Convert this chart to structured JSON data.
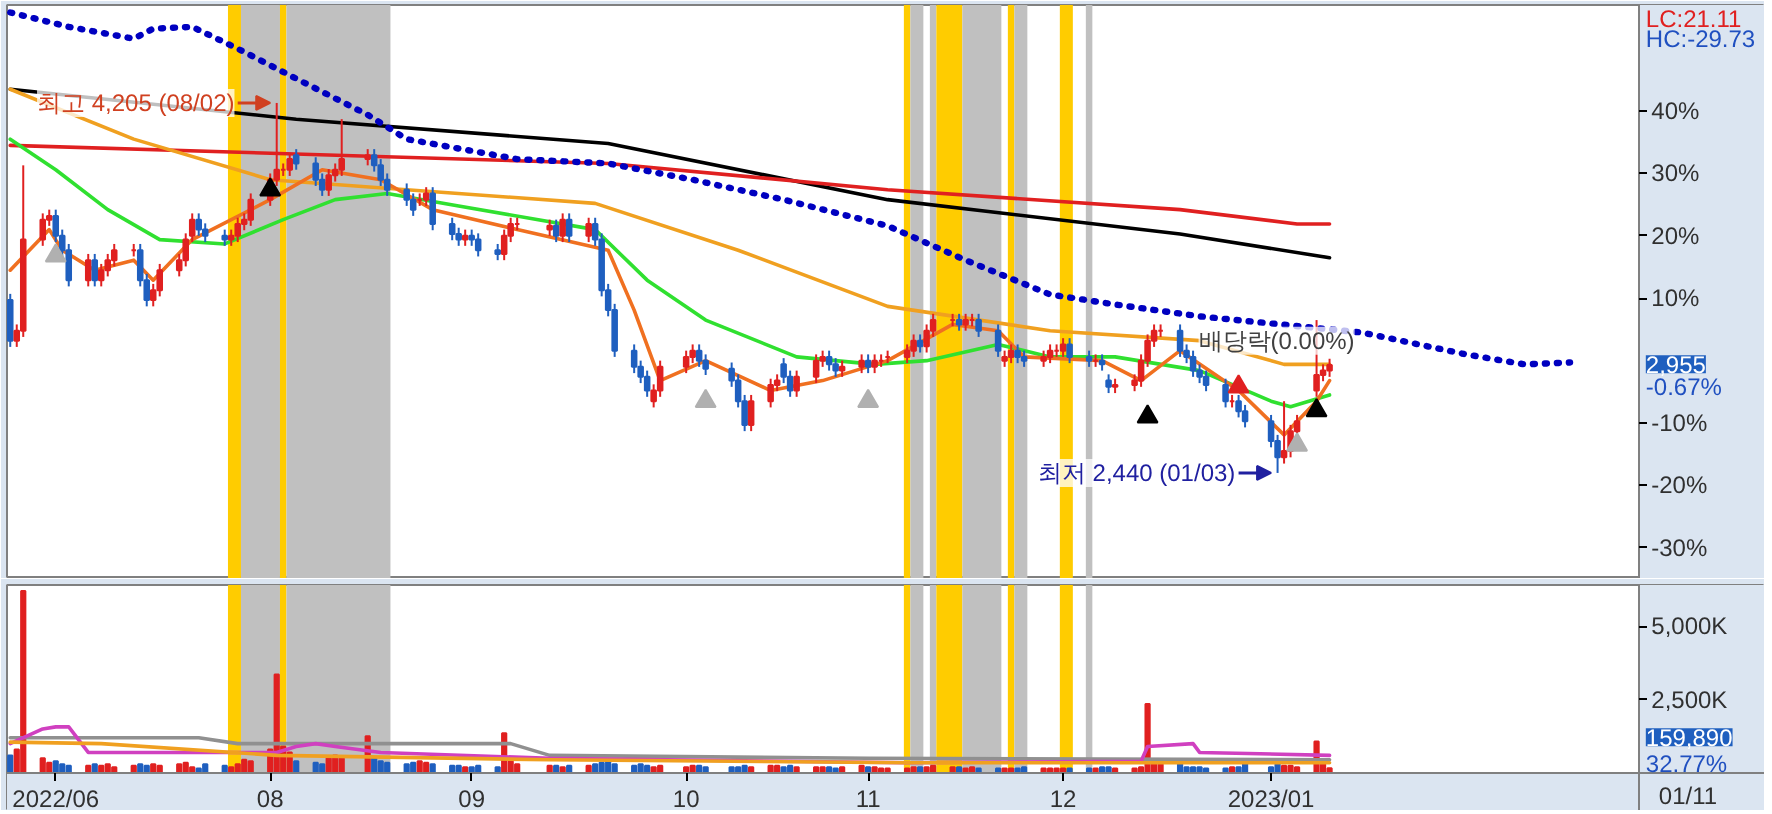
{
  "chart_data": [
    {
      "type": "candlestick",
      "xlim": [
        "2022-06-21T12:00",
        "2023-03-19"
      ],
      "ylim": [
        -35,
        57
      ],
      "yticks": [
        {
          "value": -30,
          "label": "-30%"
        },
        {
          "value": -20,
          "label": "-20%"
        },
        {
          "value": -10,
          "label": "-10%"
        },
        {
          "value": 10,
          "label": "10%"
        },
        {
          "value": 20,
          "label": "20%"
        },
        {
          "value": 30,
          "label": "30%"
        },
        {
          "value": 40,
          "label": "40%"
        }
      ],
      "tick_labels": "y",
      "x": [
        "2022-06-22",
        "2022-06-23",
        "2022-06-24",
        "2022-06-27",
        "2022-06-28",
        "2022-06-29",
        "2022-06-30",
        "2022-07-01",
        "2022-07-04",
        "2022-07-05",
        "2022-07-06",
        "2022-07-07",
        "2022-07-08",
        "2022-07-11",
        "2022-07-12",
        "2022-07-13",
        "2022-07-14",
        "2022-07-15",
        "2022-07-18",
        "2022-07-19",
        "2022-07-20",
        "2022-07-21",
        "2022-07-22",
        "2022-07-25",
        "2022-07-26",
        "2022-07-27",
        "2022-07-28",
        "2022-07-29",
        "2022-08-01",
        "2022-08-02",
        "2022-08-03",
        "2022-08-04",
        "2022-08-05",
        "2022-08-08",
        "2022-08-09",
        "2022-08-10",
        "2022-08-11",
        "2022-08-12",
        "2022-08-16",
        "2022-08-17",
        "2022-08-18",
        "2022-08-19",
        "2022-08-22",
        "2022-08-23",
        "2022-08-24",
        "2022-08-25",
        "2022-08-26",
        "2022-08-29",
        "2022-08-30",
        "2022-08-31",
        "2022-09-01",
        "2022-09-02",
        "2022-09-05",
        "2022-09-06",
        "2022-09-07",
        "2022-09-08",
        "2022-09-13",
        "2022-09-14",
        "2022-09-15",
        "2022-09-16",
        "2022-09-19",
        "2022-09-20",
        "2022-09-21",
        "2022-09-22",
        "2022-09-23",
        "2022-09-26",
        "2022-09-27",
        "2022-09-28",
        "2022-09-29",
        "2022-09-30",
        "2022-10-04",
        "2022-10-05",
        "2022-10-06",
        "2022-10-07",
        "2022-10-11",
        "2022-10-12",
        "2022-10-13",
        "2022-10-14",
        "2022-10-17",
        "2022-10-18",
        "2022-10-19",
        "2022-10-20",
        "2022-10-21",
        "2022-10-24",
        "2022-10-25",
        "2022-10-26",
        "2022-10-27",
        "2022-10-28",
        "2022-10-31",
        "2022-11-01",
        "2022-11-02",
        "2022-11-03",
        "2022-11-04",
        "2022-11-07",
        "2022-11-08",
        "2022-11-09",
        "2022-11-10",
        "2022-11-11",
        "2022-11-14",
        "2022-11-15",
        "2022-11-16",
        "2022-11-17",
        "2022-11-18",
        "2022-11-21",
        "2022-11-22",
        "2022-11-23",
        "2022-11-24",
        "2022-11-25",
        "2022-11-28",
        "2022-11-29",
        "2022-11-30",
        "2022-12-01",
        "2022-12-02",
        "2022-12-05",
        "2022-12-06",
        "2022-12-07",
        "2022-12-08",
        "2022-12-09",
        "2022-12-12",
        "2022-12-13",
        "2022-12-14",
        "2022-12-15",
        "2022-12-16",
        "2022-12-19",
        "2022-12-20",
        "2022-12-21",
        "2022-12-22",
        "2022-12-23",
        "2022-12-26",
        "2022-12-27",
        "2022-12-28",
        "2022-12-29",
        "2023-01-02",
        "2023-01-03",
        "2023-01-04",
        "2023-01-05",
        "2023-01-06",
        "2023-01-09",
        "2023-01-10",
        "2023-01-11"
      ],
      "ohlc": [
        [
          9.7,
          10.7,
          2.2,
          3.2
        ],
        [
          3.2,
          5.8,
          2.2,
          4.8
        ],
        [
          4.8,
          31.3,
          3.8,
          19.4
        ],
        [
          19.4,
          23.6,
          18.4,
          22.6
        ],
        [
          22.6,
          24.2,
          21.6,
          23.2
        ],
        [
          23.2,
          24.2,
          19.0,
          20.0
        ],
        [
          20.0,
          21.0,
          16.7,
          17.7
        ],
        [
          17.7,
          18.7,
          11.9,
          12.9
        ],
        [
          12.9,
          17.1,
          11.9,
          16.1
        ],
        [
          16.1,
          17.1,
          11.9,
          12.9
        ],
        [
          12.9,
          15.5,
          11.9,
          14.5
        ],
        [
          14.5,
          17.1,
          13.5,
          16.1
        ],
        [
          16.1,
          18.7,
          15.1,
          17.7
        ],
        [
          17.7,
          18.7,
          16.7,
          17.7
        ],
        [
          17.7,
          18.7,
          11.9,
          12.9
        ],
        [
          12.9,
          13.9,
          8.7,
          9.7
        ],
        [
          9.7,
          12.3,
          8.7,
          11.3
        ],
        [
          11.3,
          15.5,
          10.3,
          14.5
        ],
        [
          14.5,
          17.1,
          13.5,
          16.1
        ],
        [
          16.1,
          20.4,
          15.1,
          19.4
        ],
        [
          20.0,
          23.6,
          19.0,
          22.6
        ],
        [
          22.6,
          23.6,
          20.0,
          21.0
        ],
        [
          21.0,
          22.0,
          19.0,
          20.0
        ],
        [
          20.0,
          21.0,
          18.4,
          19.4
        ],
        [
          19.4,
          21.0,
          18.4,
          20.0
        ],
        [
          20.0,
          22.9,
          19.0,
          21.9
        ],
        [
          21.9,
          23.6,
          20.9,
          22.6
        ],
        [
          22.6,
          26.8,
          21.6,
          25.8
        ],
        [
          25.8,
          30.0,
          24.8,
          29.0
        ],
        [
          29.0,
          41.3,
          28.0,
          30.6
        ],
        [
          30.6,
          31.6,
          29.6,
          30.6
        ],
        [
          30.6,
          33.3,
          29.6,
          32.3
        ],
        [
          32.9,
          33.9,
          30.6,
          31.6
        ],
        [
          31.6,
          32.6,
          28.0,
          29.0
        ],
        [
          29.0,
          30.0,
          26.4,
          27.4
        ],
        [
          27.4,
          30.7,
          26.4,
          29.7
        ],
        [
          29.7,
          31.6,
          28.7,
          30.6
        ],
        [
          30.6,
          38.7,
          29.6,
          32.3
        ],
        [
          32.3,
          33.9,
          31.3,
          32.9
        ],
        [
          32.9,
          33.9,
          30.3,
          31.3
        ],
        [
          31.3,
          32.3,
          28.0,
          29.0
        ],
        [
          29.0,
          30.0,
          26.4,
          27.4
        ],
        [
          27.4,
          28.4,
          24.8,
          25.8
        ],
        [
          25.8,
          26.8,
          23.2,
          24.2
        ],
        [
          25.8,
          26.8,
          24.8,
          25.8
        ],
        [
          25.8,
          27.8,
          24.8,
          26.8
        ],
        [
          26.8,
          27.8,
          20.9,
          21.9
        ],
        [
          21.9,
          22.9,
          19.3,
          20.3
        ],
        [
          20.3,
          21.3,
          18.4,
          19.4
        ],
        [
          19.4,
          21.0,
          18.4,
          20.0
        ],
        [
          20.0,
          21.0,
          18.4,
          19.4
        ],
        [
          19.4,
          20.4,
          16.7,
          17.7
        ],
        [
          17.7,
          18.7,
          16.1,
          17.1
        ],
        [
          17.1,
          21.0,
          16.1,
          20.0
        ],
        [
          20.0,
          22.9,
          19.0,
          21.9
        ],
        [
          21.9,
          22.9,
          20.9,
          21.9
        ],
        [
          21.0,
          22.6,
          20.0,
          21.6
        ],
        [
          21.6,
          22.6,
          19.0,
          20.0
        ],
        [
          20.0,
          23.6,
          19.0,
          22.6
        ],
        [
          22.6,
          23.6,
          19.0,
          20.0
        ],
        [
          20.0,
          22.9,
          19.0,
          21.9
        ],
        [
          21.9,
          22.9,
          18.4,
          19.4
        ],
        [
          19.4,
          20.4,
          10.3,
          11.3
        ],
        [
          11.3,
          12.3,
          7.1,
          8.1
        ],
        [
          8.1,
          9.1,
          0.6,
          1.6
        ],
        [
          1.6,
          2.6,
          -2.0,
          -1.0
        ],
        [
          -1.0,
          0.0,
          -3.6,
          -2.6
        ],
        [
          -2.6,
          -1.6,
          -5.8,
          -4.8
        ],
        [
          -6.5,
          -3.8,
          -7.5,
          -4.8
        ],
        [
          -4.8,
          0.0,
          -5.8,
          -1.0
        ],
        [
          -1.0,
          1.6,
          -2.0,
          0.6
        ],
        [
          0.6,
          2.6,
          -0.4,
          1.6
        ],
        [
          1.6,
          2.6,
          -1.0,
          0.0
        ],
        [
          0.0,
          1.0,
          -2.3,
          -1.3
        ],
        [
          -1.3,
          -0.3,
          -4.2,
          -3.2
        ],
        [
          -3.2,
          -2.2,
          -7.5,
          -6.5
        ],
        [
          -6.5,
          -5.5,
          -11.3,
          -10.3
        ],
        [
          -10.3,
          -5.5,
          -11.3,
          -6.5
        ],
        [
          -6.5,
          -2.9,
          -7.5,
          -3.9
        ],
        [
          -3.9,
          -2.2,
          -4.9,
          -3.2
        ],
        [
          -0.6,
          0.4,
          -3.6,
          -2.6
        ],
        [
          -2.6,
          -1.6,
          -5.8,
          -4.8
        ],
        [
          -4.8,
          -1.6,
          -5.8,
          -2.6
        ],
        [
          -2.6,
          1.0,
          -3.6,
          0.0
        ],
        [
          0.0,
          1.6,
          -1.0,
          0.6
        ],
        [
          0.6,
          1.6,
          -1.6,
          -0.6
        ],
        [
          -0.6,
          0.4,
          -2.6,
          -1.6
        ],
        [
          -1.6,
          0.0,
          -2.6,
          -1.0
        ],
        [
          -1.0,
          1.0,
          -2.0,
          0.0
        ],
        [
          0.0,
          1.0,
          -2.0,
          -1.0
        ],
        [
          -1.0,
          1.0,
          -2.0,
          0.0
        ],
        [
          0.0,
          1.0,
          -1.0,
          0.0
        ],
        [
          0.6,
          1.6,
          -0.4,
          0.6
        ],
        [
          0.6,
          2.6,
          -0.4,
          1.6
        ],
        [
          1.6,
          4.2,
          0.6,
          3.2
        ],
        [
          3.2,
          4.2,
          1.3,
          2.3
        ],
        [
          2.3,
          5.8,
          1.3,
          4.8
        ],
        [
          4.8,
          7.5,
          3.8,
          6.5
        ],
        [
          6.5,
          7.5,
          5.5,
          6.5
        ],
        [
          6.5,
          7.5,
          4.8,
          5.8
        ],
        [
          5.8,
          7.5,
          4.8,
          6.5
        ],
        [
          6.5,
          7.5,
          5.5,
          6.5
        ],
        [
          6.5,
          7.5,
          3.8,
          4.8
        ],
        [
          4.8,
          5.8,
          0.6,
          1.6
        ],
        [
          0.0,
          1.6,
          -1.0,
          0.6
        ],
        [
          0.6,
          2.6,
          -0.4,
          1.6
        ],
        [
          1.6,
          2.6,
          -0.4,
          0.6
        ],
        [
          0.6,
          1.6,
          -1.0,
          0.0
        ],
        [
          0.0,
          1.6,
          -1.0,
          0.6
        ],
        [
          0.6,
          2.6,
          -0.4,
          1.6
        ],
        [
          1.6,
          2.6,
          0.6,
          1.6
        ],
        [
          1.6,
          3.6,
          0.6,
          2.6
        ],
        [
          2.6,
          3.6,
          -0.4,
          0.6
        ],
        [
          0.6,
          1.6,
          -1.0,
          0.0
        ],
        [
          0.0,
          1.0,
          -1.0,
          0.0
        ],
        [
          0.0,
          1.0,
          -1.6,
          -0.6
        ],
        [
          -3.2,
          -2.2,
          -5.2,
          -4.2
        ],
        [
          -4.2,
          -2.9,
          -5.2,
          -3.9
        ],
        [
          -3.9,
          -2.2,
          -4.9,
          -3.2
        ],
        [
          -3.2,
          1.0,
          -4.2,
          0.0
        ],
        [
          0.0,
          4.2,
          -1.0,
          3.2
        ],
        [
          3.2,
          5.8,
          2.2,
          4.8
        ],
        [
          4.8,
          5.8,
          3.8,
          4.8
        ],
        [
          4.8,
          5.8,
          0.6,
          1.6
        ],
        [
          1.6,
          2.6,
          -0.4,
          0.6
        ],
        [
          0.6,
          1.6,
          -2.6,
          -1.6
        ],
        [
          -1.6,
          -0.6,
          -3.6,
          -2.6
        ],
        [
          -2.6,
          -1.6,
          -4.9,
          -3.9
        ],
        [
          -3.9,
          -2.9,
          -7.5,
          -6.5
        ],
        [
          -6.5,
          -5.5,
          -7.5,
          -6.5
        ],
        [
          -6.5,
          -5.5,
          -9.1,
          -8.1
        ],
        [
          -8.1,
          -7.1,
          -10.7,
          -9.7
        ],
        [
          -9.7,
          -8.7,
          -13.9,
          -12.9
        ],
        [
          -12.9,
          -11.9,
          -18.0,
          -15.5
        ],
        [
          -15.5,
          -6.5,
          -16.5,
          -14.5
        ],
        [
          -14.5,
          -10.3,
          -15.5,
          -11.3
        ],
        [
          -11.3,
          -8.7,
          -12.3,
          -9.7
        ],
        [
          -4.8,
          6.5,
          -5.8,
          -2.3
        ],
        [
          -2.3,
          -0.6,
          -3.3,
          -1.6
        ],
        [
          -1.6,
          0.3,
          -2.6,
          -0.7
        ]
      ],
      "colors": [
        "#1f5fbf",
        "#e02020",
        "#e02020",
        "#e02020",
        "#e02020",
        "#1f5fbf",
        "#1f5fbf",
        "#1f5fbf",
        "#e02020",
        "#1f5fbf",
        "#e02020",
        "#e02020",
        "#e02020",
        "#e02020",
        "#1f5fbf",
        "#1f5fbf",
        "#e02020",
        "#e02020",
        "#e02020",
        "#e02020",
        "#e02020",
        "#1f5fbf",
        "#1f5fbf",
        "#1f5fbf",
        "#e02020",
        "#e02020",
        "#e02020",
        "#e02020",
        "#e02020",
        "#e02020",
        "#e02020",
        "#e02020",
        "#1f5fbf",
        "#1f5fbf",
        "#1f5fbf",
        "#e02020",
        "#e02020",
        "#e02020",
        "#e02020",
        "#1f5fbf",
        "#1f5fbf",
        "#1f5fbf",
        "#1f5fbf",
        "#1f5fbf",
        "#e02020",
        "#e02020",
        "#1f5fbf",
        "#1f5fbf",
        "#1f5fbf",
        "#e02020",
        "#1f5fbf",
        "#1f5fbf",
        "#1f5fbf",
        "#e02020",
        "#e02020",
        "#e02020",
        "#e02020",
        "#1f5fbf",
        "#e02020",
        "#1f5fbf",
        "#e02020",
        "#1f5fbf",
        "#1f5fbf",
        "#1f5fbf",
        "#1f5fbf",
        "#1f5fbf",
        "#1f5fbf",
        "#1f5fbf",
        "#e02020",
        "#e02020",
        "#e02020",
        "#e02020",
        "#1f5fbf",
        "#1f5fbf",
        "#1f5fbf",
        "#1f5fbf",
        "#1f5fbf",
        "#e02020",
        "#e02020",
        "#e02020",
        "#1f5fbf",
        "#1f5fbf",
        "#e02020",
        "#e02020",
        "#e02020",
        "#1f5fbf",
        "#1f5fbf",
        "#e02020",
        "#e02020",
        "#1f5fbf",
        "#e02020",
        "#e02020",
        "#e02020",
        "#e02020",
        "#e02020",
        "#1f5fbf",
        "#e02020",
        "#e02020",
        "#e02020",
        "#1f5fbf",
        "#e02020",
        "#e02020",
        "#1f5fbf",
        "#1f5fbf",
        "#e02020",
        "#e02020",
        "#1f5fbf",
        "#1f5fbf",
        "#e02020",
        "#e02020",
        "#e02020",
        "#e02020",
        "#1f5fbf",
        "#1f5fbf",
        "#e02020",
        "#1f5fbf",
        "#1f5fbf",
        "#e02020",
        "#e02020",
        "#e02020",
        "#e02020",
        "#e02020",
        "#e02020",
        "#1f5fbf",
        "#1f5fbf",
        "#1f5fbf",
        "#1f5fbf",
        "#1f5fbf",
        "#1f5fbf",
        "#e02020",
        "#1f5fbf",
        "#1f5fbf",
        "#1f5fbf",
        "#1f5fbf",
        "#e02020",
        "#e02020",
        "#e02020",
        "#e02020",
        "#e02020",
        "#e02020"
      ],
      "series": [
        {
          "type": "line",
          "color": "#000000",
          "x": [
            "2022-06-22",
            "2022-08-05",
            "2022-09-22",
            "2022-11-04",
            "2022-12-19",
            "2023-01-11"
          ],
          "values": [
            43.5,
            38.7,
            34.8,
            25.8,
            20.3,
            16.5
          ]
        },
        {
          "type": "line",
          "color": "#e02020",
          "x": [
            "2022-06-22",
            "2022-09-22",
            "2022-11-04",
            "2022-12-19",
            "2023-01-06",
            "2023-01-11"
          ],
          "values": [
            34.5,
            31.6,
            27.4,
            24.2,
            21.9,
            21.9
          ]
        },
        {
          "type": "line",
          "color": "#f0a020",
          "x": [
            "2022-06-22",
            "2022-07-11",
            "2022-08-01",
            "2022-08-22",
            "2022-09-20",
            "2022-10-12",
            "2022-11-04",
            "2022-11-29",
            "2022-12-22",
            "2023-01-04",
            "2023-01-11"
          ],
          "values": [
            43.5,
            35.5,
            29,
            27.4,
            25.2,
            17.7,
            8.7,
            4.8,
            3.2,
            -0.6,
            -0.6
          ]
        },
        {
          "type": "line",
          "color": "#30e030",
          "x": [
            "2022-06-22",
            "2022-06-29",
            "2022-07-07",
            "2022-07-15",
            "2022-07-25",
            "2022-08-03",
            "2022-08-11",
            "2022-08-19",
            "2022-08-30",
            "2022-09-20",
            "2022-09-28",
            "2022-10-07",
            "2022-10-21",
            "2022-11-02",
            "2022-11-10",
            "2022-11-21",
            "2022-11-29",
            "2022-12-09",
            "2022-12-22",
            "2023-01-02",
            "2023-01-05",
            "2023-01-11"
          ],
          "values": [
            35.5,
            30.6,
            24.2,
            19.4,
            18.7,
            22.6,
            25.8,
            26.8,
            24.8,
            21,
            12.9,
            6.5,
            0.6,
            -0.6,
            0,
            2.6,
            0.6,
            0.6,
            -1.6,
            -6.5,
            -7.4,
            -5.5
          ]
        },
        {
          "type": "line",
          "color": "#f07020",
          "x": [
            "2022-06-22",
            "2022-06-28",
            "2022-06-30",
            "2022-07-05",
            "2022-07-11",
            "2022-07-14",
            "2022-07-20",
            "2022-08-01",
            "2022-08-09",
            "2022-08-18",
            "2022-08-26",
            "2022-09-08",
            "2022-09-22",
            "2022-09-26",
            "2022-09-30",
            "2022-10-07",
            "2022-10-17",
            "2022-10-25",
            "2022-11-04",
            "2022-11-14",
            "2022-11-21",
            "2022-11-25",
            "2022-12-07",
            "2022-12-13",
            "2022-12-19",
            "2022-12-28",
            "2023-01-04",
            "2023-01-09",
            "2023-01-11"
          ],
          "values": [
            14.5,
            21,
            17.7,
            14.5,
            16.1,
            12.9,
            19.4,
            25.8,
            30.6,
            29,
            24.2,
            21,
            17.7,
            8.1,
            -3.2,
            0,
            -4.8,
            -3.2,
            0,
            5.8,
            4.8,
            0.6,
            0,
            -3.2,
            1.6,
            -4.8,
            -11.9,
            -6.5,
            -3.2
          ]
        },
        {
          "type": "line",
          "color": "#0000c0",
          "line_style": "dotted",
          "x": [
            "2022-06-22",
            "2022-07-01",
            "2022-07-11",
            "2022-07-14",
            "2022-07-20",
            "2022-07-27",
            "2022-08-05",
            "2022-08-16",
            "2022-08-22",
            "2022-09-08",
            "2022-09-22",
            "2022-10-05",
            "2022-10-19",
            "2022-11-04",
            "2022-11-16",
            "2022-11-29",
            "2022-12-09",
            "2022-12-22",
            "2023-01-16",
            "2023-02-01",
            "2023-02-10",
            "2023-02-17"
          ],
          "values": [
            55.8,
            53.5,
            51.6,
            53.2,
            53.5,
            50,
            45.2,
            39.4,
            35.5,
            32.3,
            31.6,
            29,
            25.8,
            21.6,
            16.1,
            10.6,
            9,
            7.1,
            4.5,
            1,
            -0.6,
            -0.3
          ]
        },
        {
          "type": "scatter",
          "marker": "triangle",
          "color": "#000000",
          "x": [
            "2022-08-01",
            "2022-12-14",
            "2023-01-09"
          ],
          "values": [
            27.4,
            -9.0,
            -8.0
          ]
        },
        {
          "type": "scatter",
          "marker": "triangle",
          "color": "#b0b0b0",
          "x": [
            "2022-06-29",
            "2022-10-07",
            "2022-11-01",
            "2023-01-06"
          ],
          "values": [
            16.8,
            -6.5,
            -6.5,
            -13.5
          ]
        },
        {
          "type": "scatter",
          "marker": "triangle",
          "color": "#e02020",
          "x": [
            "2022-12-28"
          ],
          "values": [
            -4.2
          ]
        }
      ],
      "bands": [
        {
          "axis": "x",
          "from": "2022-07-25T12:00",
          "to": "2022-07-27T12:00",
          "color": "#ffcc00"
        },
        {
          "axis": "x",
          "from": "2022-07-27T12:00",
          "to": "2022-08-02T12:00",
          "color": "#c0c0c0"
        },
        {
          "axis": "x",
          "from": "2022-08-02T12:00",
          "to": "2022-08-03T12:00",
          "color": "#ffcc00"
        },
        {
          "axis": "x",
          "from": "2022-08-03T12:00",
          "to": "2022-08-19T12:00",
          "color": "#c0c0c0"
        },
        {
          "axis": "x",
          "from": "2022-11-06T12:00",
          "to": "2022-11-07T12:00",
          "color": "#ffcc00"
        },
        {
          "axis": "x",
          "from": "2022-11-07T12:00",
          "to": "2022-11-09T12:00",
          "color": "#c0c0c0"
        },
        {
          "axis": "x",
          "from": "2022-11-10T12:00",
          "to": "2022-11-11T12:00",
          "color": "#c0c0c0"
        },
        {
          "axis": "x",
          "from": "2022-11-11T12:00",
          "to": "2022-11-15T12:00",
          "color": "#ffcc00"
        },
        {
          "axis": "x",
          "from": "2022-11-15T12:00",
          "to": "2022-11-21T12:00",
          "color": "#c0c0c0"
        },
        {
          "axis": "x",
          "from": "2022-11-22T12:00",
          "to": "2022-11-23T12:00",
          "color": "#ffcc00"
        },
        {
          "axis": "x",
          "from": "2022-11-23T12:00",
          "to": "2022-11-25T12:00",
          "color": "#c0c0c0"
        },
        {
          "axis": "x",
          "from": "2022-11-30T12:00",
          "to": "2022-12-02T12:00",
          "color": "#ffcc00"
        },
        {
          "axis": "x",
          "from": "2022-12-04T12:00",
          "to": "2022-12-05T12:00",
          "color": "#c0c0c0"
        }
      ],
      "annotations": [
        {
          "text": "최고 4,205 (08/02)",
          "x": "2022-08-02",
          "y": 41.3
        },
        {
          "text": "최저 2,440 (01/03)",
          "x": "2023-01-03",
          "y": -18.0
        },
        "LC:21.11",
        "HC:-29.73",
        "2,955",
        "-0.67%",
        "배당락(0.00%)"
      ]
    },
    {
      "type": "bar",
      "xlim": [
        "2022-06-21T12:00",
        "2023-03-19"
      ],
      "ylim": [
        0,
        6400
      ],
      "xticks": [
        {
          "value": "2022-06-29",
          "label": "2022/06"
        },
        {
          "value": "2022-08-01",
          "label": "08"
        },
        {
          "value": "2022-09-01",
          "label": "09"
        },
        {
          "value": "2022-10-04",
          "label": "10"
        },
        {
          "value": "2022-11-01",
          "label": "11"
        },
        {
          "value": "2022-12-01",
          "label": "12"
        },
        {
          "value": "2023-01-02",
          "label": "2023/01"
        }
      ],
      "yticks": [
        {
          "value": 2500,
          "label": "2,500K"
        },
        {
          "value": 5000,
          "label": "5,000K"
        }
      ],
      "x": [
        "2022-06-22",
        "2022-06-23",
        "2022-06-24",
        "2022-06-27",
        "2022-06-28",
        "2022-06-29",
        "2022-06-30",
        "2022-07-01",
        "2022-07-04",
        "2022-07-05",
        "2022-07-06",
        "2022-07-07",
        "2022-07-08",
        "2022-07-11",
        "2022-07-12",
        "2022-07-13",
        "2022-07-14",
        "2022-07-15",
        "2022-07-18",
        "2022-07-19",
        "2022-07-20",
        "2022-07-21",
        "2022-07-22",
        "2022-07-25",
        "2022-07-26",
        "2022-07-27",
        "2022-07-28",
        "2022-07-29",
        "2022-08-01",
        "2022-08-02",
        "2022-08-03",
        "2022-08-04",
        "2022-08-05",
        "2022-08-08",
        "2022-08-09",
        "2022-08-10",
        "2022-08-11",
        "2022-08-12",
        "2022-08-16",
        "2022-08-17",
        "2022-08-18",
        "2022-08-19",
        "2022-08-22",
        "2022-08-23",
        "2022-08-24",
        "2022-08-25",
        "2022-08-26",
        "2022-08-29",
        "2022-08-30",
        "2022-08-31",
        "2022-09-01",
        "2022-09-02",
        "2022-09-05",
        "2022-09-06",
        "2022-09-07",
        "2022-09-08",
        "2022-09-13",
        "2022-09-14",
        "2022-09-15",
        "2022-09-16",
        "2022-09-19",
        "2022-09-20",
        "2022-09-21",
        "2022-09-22",
        "2022-09-23",
        "2022-09-26",
        "2022-09-27",
        "2022-09-28",
        "2022-09-29",
        "2022-09-30",
        "2022-10-04",
        "2022-10-05",
        "2022-10-06",
        "2022-10-07",
        "2022-10-11",
        "2022-10-12",
        "2022-10-13",
        "2022-10-14",
        "2022-10-17",
        "2022-10-18",
        "2022-10-19",
        "2022-10-20",
        "2022-10-21",
        "2022-10-24",
        "2022-10-25",
        "2022-10-26",
        "2022-10-27",
        "2022-10-28",
        "2022-10-31",
        "2022-11-01",
        "2022-11-02",
        "2022-11-03",
        "2022-11-04",
        "2022-11-07",
        "2022-11-08",
        "2022-11-09",
        "2022-11-10",
        "2022-11-11",
        "2022-11-14",
        "2022-11-15",
        "2022-11-16",
        "2022-11-17",
        "2022-11-18",
        "2022-11-21",
        "2022-11-22",
        "2022-11-23",
        "2022-11-24",
        "2022-11-25",
        "2022-11-28",
        "2022-11-29",
        "2022-11-30",
        "2022-12-01",
        "2022-12-02",
        "2022-12-05",
        "2022-12-06",
        "2022-12-07",
        "2022-12-08",
        "2022-12-09",
        "2022-12-12",
        "2022-12-13",
        "2022-12-14",
        "2022-12-15",
        "2022-12-16",
        "2022-12-19",
        "2022-12-20",
        "2022-12-21",
        "2022-12-22",
        "2022-12-23",
        "2022-12-26",
        "2022-12-27",
        "2022-12-28",
        "2022-12-29",
        "2023-01-02",
        "2023-01-03",
        "2023-01-04",
        "2023-01-05",
        "2023-01-06",
        "2023-01-09",
        "2023-01-10",
        "2023-01-11"
      ],
      "values": [
        600,
        800,
        6200,
        500,
        350,
        400,
        300,
        250,
        250,
        300,
        250,
        300,
        200,
        250,
        300,
        250,
        300,
        250,
        300,
        350,
        200,
        150,
        300,
        250,
        200,
        300,
        450,
        400,
        800,
        3350,
        900,
        700,
        400,
        350,
        300,
        500,
        600,
        500,
        1250,
        500,
        400,
        350,
        300,
        350,
        400,
        350,
        300,
        250,
        250,
        200,
        200,
        250,
        200,
        1350,
        400,
        300,
        250,
        250,
        200,
        250,
        250,
        300,
        350,
        400,
        300,
        250,
        300,
        250,
        200,
        250,
        200,
        250,
        250,
        200,
        200,
        200,
        250,
        200,
        250,
        250,
        200,
        250,
        200,
        200,
        200,
        200,
        150,
        200,
        250,
        200,
        200,
        150,
        150,
        150,
        200,
        200,
        200,
        250,
        200,
        200,
        150,
        200,
        150,
        150,
        150,
        150,
        150,
        200,
        150,
        150,
        150,
        150,
        150,
        150,
        150,
        200,
        200,
        150,
        150,
        200,
        2350,
        400,
        300,
        350,
        200,
        200,
        200,
        150,
        150,
        200,
        200,
        400,
        200,
        300,
        250,
        250,
        200,
        1070,
        300,
        160
      ],
      "colors": [
        "#1f5fbf",
        "#e02020",
        "#e02020",
        "#e02020",
        "#e02020",
        "#1f5fbf",
        "#1f5fbf",
        "#1f5fbf",
        "#e02020",
        "#1f5fbf",
        "#e02020",
        "#e02020",
        "#e02020",
        "#e02020",
        "#1f5fbf",
        "#1f5fbf",
        "#e02020",
        "#e02020",
        "#e02020",
        "#e02020",
        "#e02020",
        "#1f5fbf",
        "#1f5fbf",
        "#1f5fbf",
        "#e02020",
        "#e02020",
        "#e02020",
        "#e02020",
        "#e02020",
        "#e02020",
        "#e02020",
        "#e02020",
        "#1f5fbf",
        "#1f5fbf",
        "#1f5fbf",
        "#e02020",
        "#e02020",
        "#e02020",
        "#e02020",
        "#1f5fbf",
        "#1f5fbf",
        "#1f5fbf",
        "#1f5fbf",
        "#1f5fbf",
        "#e02020",
        "#e02020",
        "#1f5fbf",
        "#1f5fbf",
        "#1f5fbf",
        "#e02020",
        "#1f5fbf",
        "#1f5fbf",
        "#1f5fbf",
        "#e02020",
        "#e02020",
        "#e02020",
        "#e02020",
        "#1f5fbf",
        "#e02020",
        "#1f5fbf",
        "#e02020",
        "#1f5fbf",
        "#1f5fbf",
        "#1f5fbf",
        "#1f5fbf",
        "#1f5fbf",
        "#1f5fbf",
        "#1f5fbf",
        "#e02020",
        "#e02020",
        "#e02020",
        "#e02020",
        "#1f5fbf",
        "#1f5fbf",
        "#1f5fbf",
        "#1f5fbf",
        "#1f5fbf",
        "#e02020",
        "#e02020",
        "#e02020",
        "#1f5fbf",
        "#1f5fbf",
        "#e02020",
        "#e02020",
        "#e02020",
        "#1f5fbf",
        "#1f5fbf",
        "#e02020",
        "#e02020",
        "#1f5fbf",
        "#e02020",
        "#e02020",
        "#e02020",
        "#e02020",
        "#e02020",
        "#1f5fbf",
        "#e02020",
        "#e02020",
        "#e02020",
        "#1f5fbf",
        "#e02020",
        "#e02020",
        "#1f5fbf",
        "#1f5fbf",
        "#e02020",
        "#e02020",
        "#1f5fbf",
        "#1f5fbf",
        "#e02020",
        "#e02020",
        "#e02020",
        "#e02020",
        "#1f5fbf",
        "#1f5fbf",
        "#e02020",
        "#1f5fbf",
        "#1f5fbf",
        "#e02020",
        "#e02020",
        "#e02020",
        "#e02020",
        "#e02020",
        "#e02020",
        "#1f5fbf",
        "#1f5fbf",
        "#1f5fbf",
        "#1f5fbf",
        "#1f5fbf",
        "#1f5fbf",
        "#e02020",
        "#1f5fbf",
        "#1f5fbf",
        "#1f5fbf",
        "#1f5fbf",
        "#e02020",
        "#e02020",
        "#e02020",
        "#e02020",
        "#e02020",
        "#e02020"
      ],
      "series": [
        {
          "type": "line",
          "color": "#909090",
          "x": [
            "2022-06-22",
            "2022-07-21",
            "2022-07-27",
            "2022-09-07",
            "2022-09-13",
            "2022-11-01",
            "2023-01-11"
          ],
          "values": [
            1200,
            1200,
            1000,
            1000,
            600,
            500,
            450
          ]
        },
        {
          "type": "line",
          "color": "#d040c0",
          "x": [
            "2022-06-22",
            "2022-06-27",
            "2022-06-29",
            "2022-07-01",
            "2022-07-04",
            "2022-08-02",
            "2022-08-05",
            "2022-08-08",
            "2022-08-11",
            "2022-08-18",
            "2022-09-13",
            "2022-11-07",
            "2022-12-13",
            "2022-12-14",
            "2022-12-21",
            "2022-12-22",
            "2023-01-11"
          ],
          "values": [
            1000,
            1500,
            1570,
            1570,
            700,
            700,
            900,
            1000,
            900,
            700,
            500,
            350,
            400,
            900,
            1000,
            700,
            600
          ]
        },
        {
          "type": "line",
          "color": "#f0a020",
          "x": [
            "2022-06-22",
            "2022-07-06",
            "2022-08-02",
            "2022-09-13",
            "2022-11-07",
            "2023-01-11"
          ],
          "values": [
            1050,
            1000,
            600,
            450,
            350,
            350
          ]
        }
      ],
      "bands": [
        {
          "axis": "x",
          "from": "2022-07-25T12:00",
          "to": "2022-07-27T12:00",
          "color": "#ffcc00"
        },
        {
          "axis": "x",
          "from": "2022-07-27T12:00",
          "to": "2022-08-02T12:00",
          "color": "#c0c0c0"
        },
        {
          "axis": "x",
          "from": "2022-08-02T12:00",
          "to": "2022-08-03T12:00",
          "color": "#ffcc00"
        },
        {
          "axis": "x",
          "from": "2022-08-03T12:00",
          "to": "2022-08-19T12:00",
          "color": "#c0c0c0"
        },
        {
          "axis": "x",
          "from": "2022-11-06T12:00",
          "to": "2022-11-07T12:00",
          "color": "#ffcc00"
        },
        {
          "axis": "x",
          "from": "2022-11-07T12:00",
          "to": "2022-11-09T12:00",
          "color": "#c0c0c0"
        },
        {
          "axis": "x",
          "from": "2022-11-10T12:00",
          "to": "2022-11-11T12:00",
          "color": "#c0c0c0"
        },
        {
          "axis": "x",
          "from": "2022-11-11T12:00",
          "to": "2022-11-15T12:00",
          "color": "#ffcc00"
        },
        {
          "axis": "x",
          "from": "2022-11-15T12:00",
          "to": "2022-11-21T12:00",
          "color": "#c0c0c0"
        },
        {
          "axis": "x",
          "from": "2022-11-22T12:00",
          "to": "2022-11-23T12:00",
          "color": "#ffcc00"
        },
        {
          "axis": "x",
          "from": "2022-11-23T12:00",
          "to": "2022-11-25T12:00",
          "color": "#c0c0c0"
        },
        {
          "axis": "x",
          "from": "2022-11-30T12:00",
          "to": "2022-12-02T12:00",
          "color": "#ffcc00"
        },
        {
          "axis": "x",
          "from": "2022-12-04T12:00",
          "to": "2022-12-05T12:00",
          "color": "#c0c0c0"
        }
      ],
      "annotations": [
        "159,890",
        "32.77%",
        "01/11"
      ]
    }
  ]
}
